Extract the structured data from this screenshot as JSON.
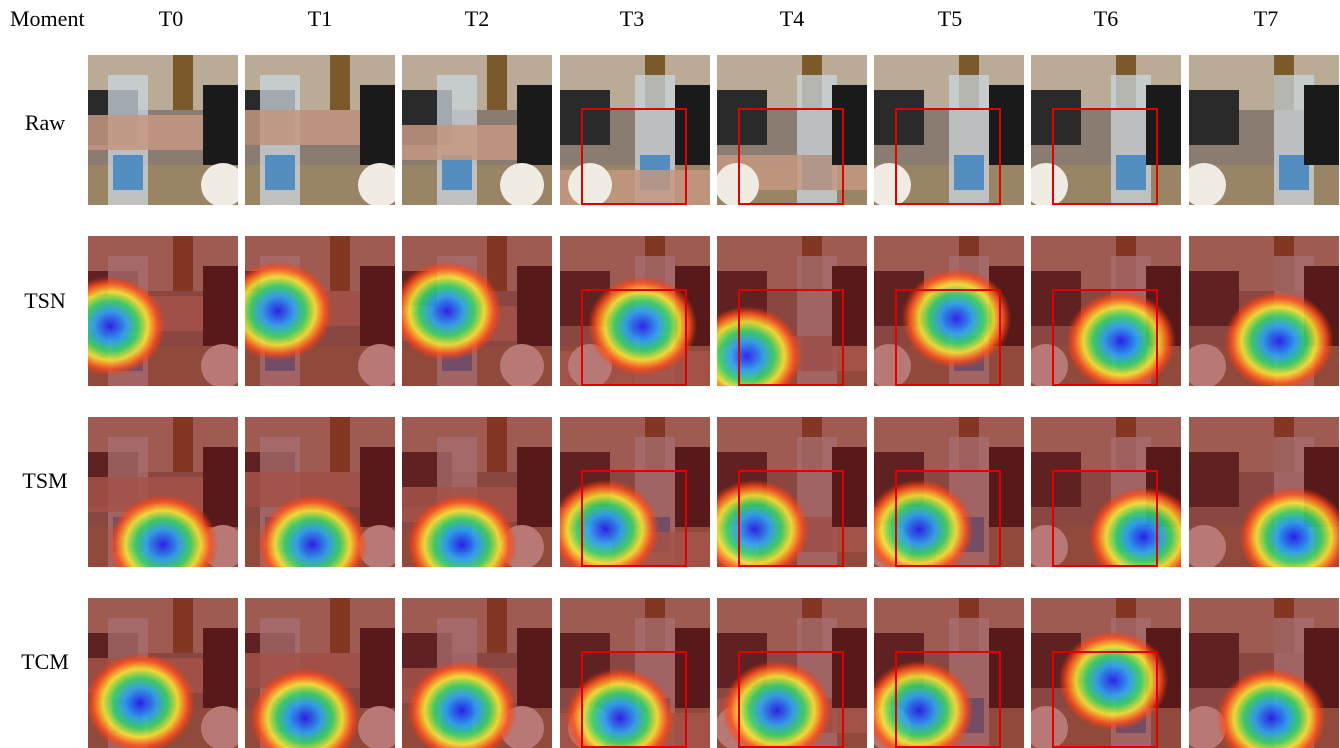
{
  "header": {
    "corner_label": "Moment",
    "moments": [
      "T0",
      "T1",
      "T2",
      "T3",
      "T4",
      "T5",
      "T6",
      "T7"
    ]
  },
  "rows": [
    {
      "label": "Raw",
      "kind": "raw"
    },
    {
      "label": "TSN",
      "kind": "heatmap"
    },
    {
      "label": "TSM",
      "kind": "heatmap"
    },
    {
      "label": "TCM",
      "kind": "heatmap"
    }
  ],
  "boxed_moments": [
    "T3",
    "T4",
    "T5",
    "T6"
  ],
  "colors": {
    "box": "#e00000",
    "heat_low": "#7a1f1f",
    "heat_high": "#1a1aff"
  },
  "attention_hotspots": {
    "TSN": [
      [
        0.15,
        0.6
      ],
      [
        0.22,
        0.5
      ],
      [
        0.3,
        0.5
      ],
      [
        0.55,
        0.6
      ],
      [
        0.2,
        0.8
      ],
      [
        0.55,
        0.55
      ],
      [
        0.6,
        0.7
      ],
      [
        0.6,
        0.7
      ]
    ],
    "TSM": [
      [
        0.5,
        0.85
      ],
      [
        0.45,
        0.85
      ],
      [
        0.4,
        0.85
      ],
      [
        0.3,
        0.75
      ],
      [
        0.25,
        0.75
      ],
      [
        0.3,
        0.75
      ],
      [
        0.75,
        0.8
      ],
      [
        0.7,
        0.8
      ]
    ],
    "TCM": [
      [
        0.35,
        0.7
      ],
      [
        0.4,
        0.8
      ],
      [
        0.4,
        0.75
      ],
      [
        0.4,
        0.8
      ],
      [
        0.4,
        0.75
      ],
      [
        0.3,
        0.75
      ],
      [
        0.55,
        0.55
      ],
      [
        0.55,
        0.8
      ]
    ]
  }
}
